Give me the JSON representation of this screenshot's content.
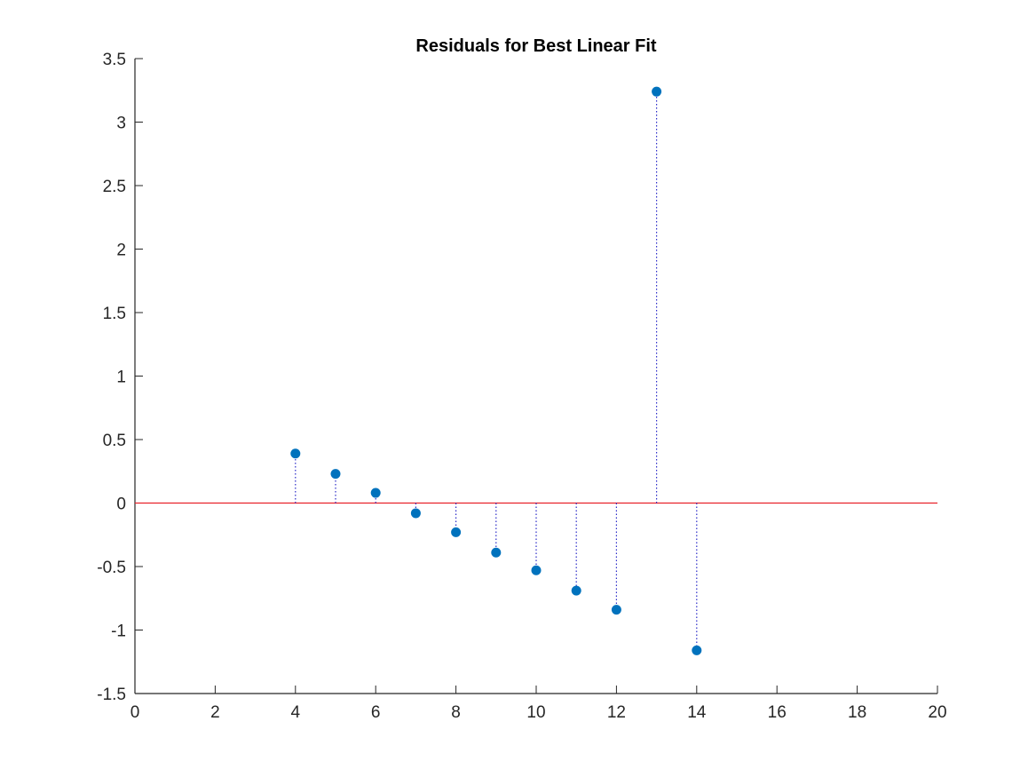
{
  "chart_data": {
    "type": "scatter",
    "title": "Residuals for Best Linear Fit",
    "xlabel": "",
    "ylabel": "",
    "xlim": [
      0,
      20
    ],
    "ylim": [
      -1.5,
      3.5
    ],
    "xticks": [
      0,
      2,
      4,
      6,
      8,
      10,
      12,
      14,
      16,
      18,
      20
    ],
    "yticks": [
      -1.5,
      -1,
      -0.5,
      0,
      0.5,
      1,
      1.5,
      2,
      2.5,
      3,
      3.5
    ],
    "xtick_labels": [
      "0",
      "2",
      "4",
      "6",
      "8",
      "10",
      "12",
      "14",
      "16",
      "18",
      "20"
    ],
    "ytick_labels": [
      "-1.5",
      "-1",
      "-0.5",
      "0",
      "0.5",
      "1",
      "1.5",
      "2",
      "2.5",
      "3",
      "3.5"
    ],
    "grid": false,
    "x": [
      4,
      5,
      6,
      7,
      8,
      9,
      10,
      11,
      12,
      13,
      14
    ],
    "y": [
      0.39,
      0.23,
      0.08,
      -0.08,
      -0.23,
      -0.39,
      -0.53,
      -0.69,
      -0.84,
      3.24,
      -1.16
    ],
    "stems": "dotted vertical lines from 0 to each point",
    "reference_line": {
      "y": 0,
      "color": "#e8232a"
    },
    "colors": {
      "points": "#0072bd",
      "stems": "#2b2bc8",
      "axes": "#262626"
    }
  }
}
